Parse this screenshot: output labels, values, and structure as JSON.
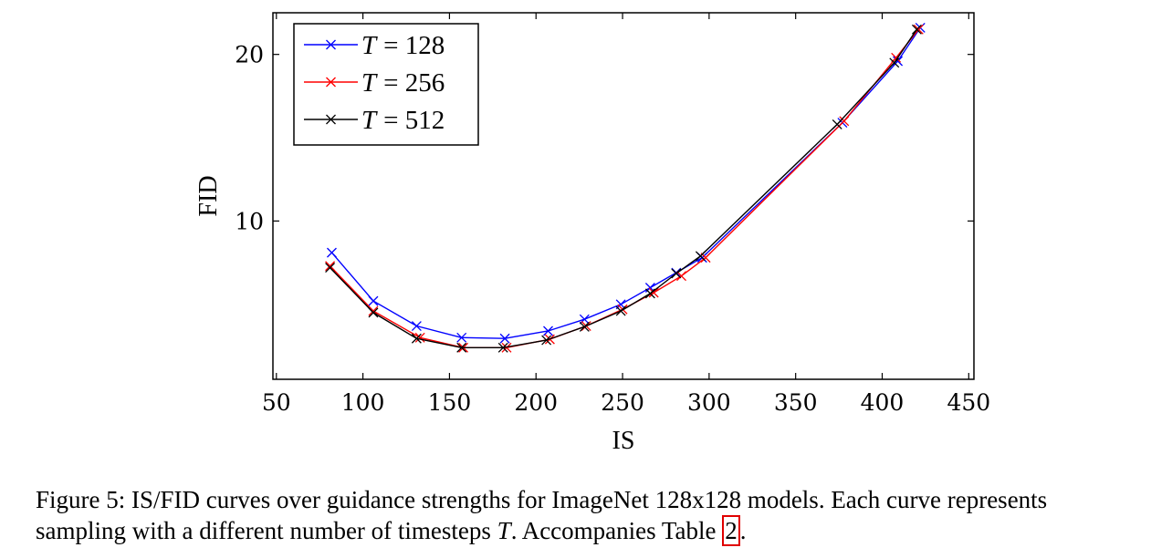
{
  "chart_data": {
    "type": "line",
    "title": "",
    "xlabel": "IS",
    "ylabel": "FID",
    "xlim": [
      48,
      453
    ],
    "ylim": [
      0.5,
      22.5
    ],
    "xticks": [
      50,
      100,
      150,
      200,
      250,
      300,
      350,
      400,
      450
    ],
    "yticks": [
      10,
      20
    ],
    "grid": false,
    "legend_position": "top-left",
    "series": [
      {
        "name": "T = 128",
        "legend_var": "T",
        "legend_eq": "= 128",
        "color": "#0000ff",
        "x": [
          82,
          106,
          131,
          157,
          182,
          207,
          228,
          249,
          266,
          281,
          296,
          377,
          409,
          422
        ],
        "y": [
          8.1,
          5.2,
          3.7,
          3.0,
          2.95,
          3.4,
          4.1,
          5.0,
          6.0,
          6.9,
          7.8,
          15.9,
          19.6,
          21.6
        ]
      },
      {
        "name": "T = 256",
        "legend_var": "T",
        "legend_eq": "= 256",
        "color": "#ff0000",
        "x": [
          81,
          106,
          133,
          158,
          183,
          208,
          229,
          250,
          268,
          284,
          298,
          378,
          408,
          421
        ],
        "y": [
          7.3,
          4.6,
          3.0,
          2.4,
          2.4,
          2.9,
          3.7,
          4.7,
          5.7,
          6.7,
          7.8,
          16.0,
          19.8,
          21.5
        ]
      },
      {
        "name": "T = 512",
        "legend_var": "T",
        "legend_eq": "= 512",
        "color": "#000000",
        "x": [
          81,
          106,
          131,
          157,
          181,
          206,
          228,
          249,
          266,
          281,
          295,
          374,
          407,
          420
        ],
        "y": [
          7.2,
          4.5,
          2.95,
          2.4,
          2.4,
          2.85,
          3.65,
          4.6,
          5.65,
          6.85,
          7.9,
          15.8,
          19.5,
          21.5
        ]
      }
    ]
  },
  "caption": {
    "line1": "Figure 5: IS/FID curves over guidance strengths for ImageNet 128x128 models. Each curve represents",
    "line2_start": "sampling with a different number of timesteps ",
    "line2_var": "T",
    "line2_mid": ". Accompanies Table ",
    "table_ref": "2",
    "line2_end": "."
  }
}
